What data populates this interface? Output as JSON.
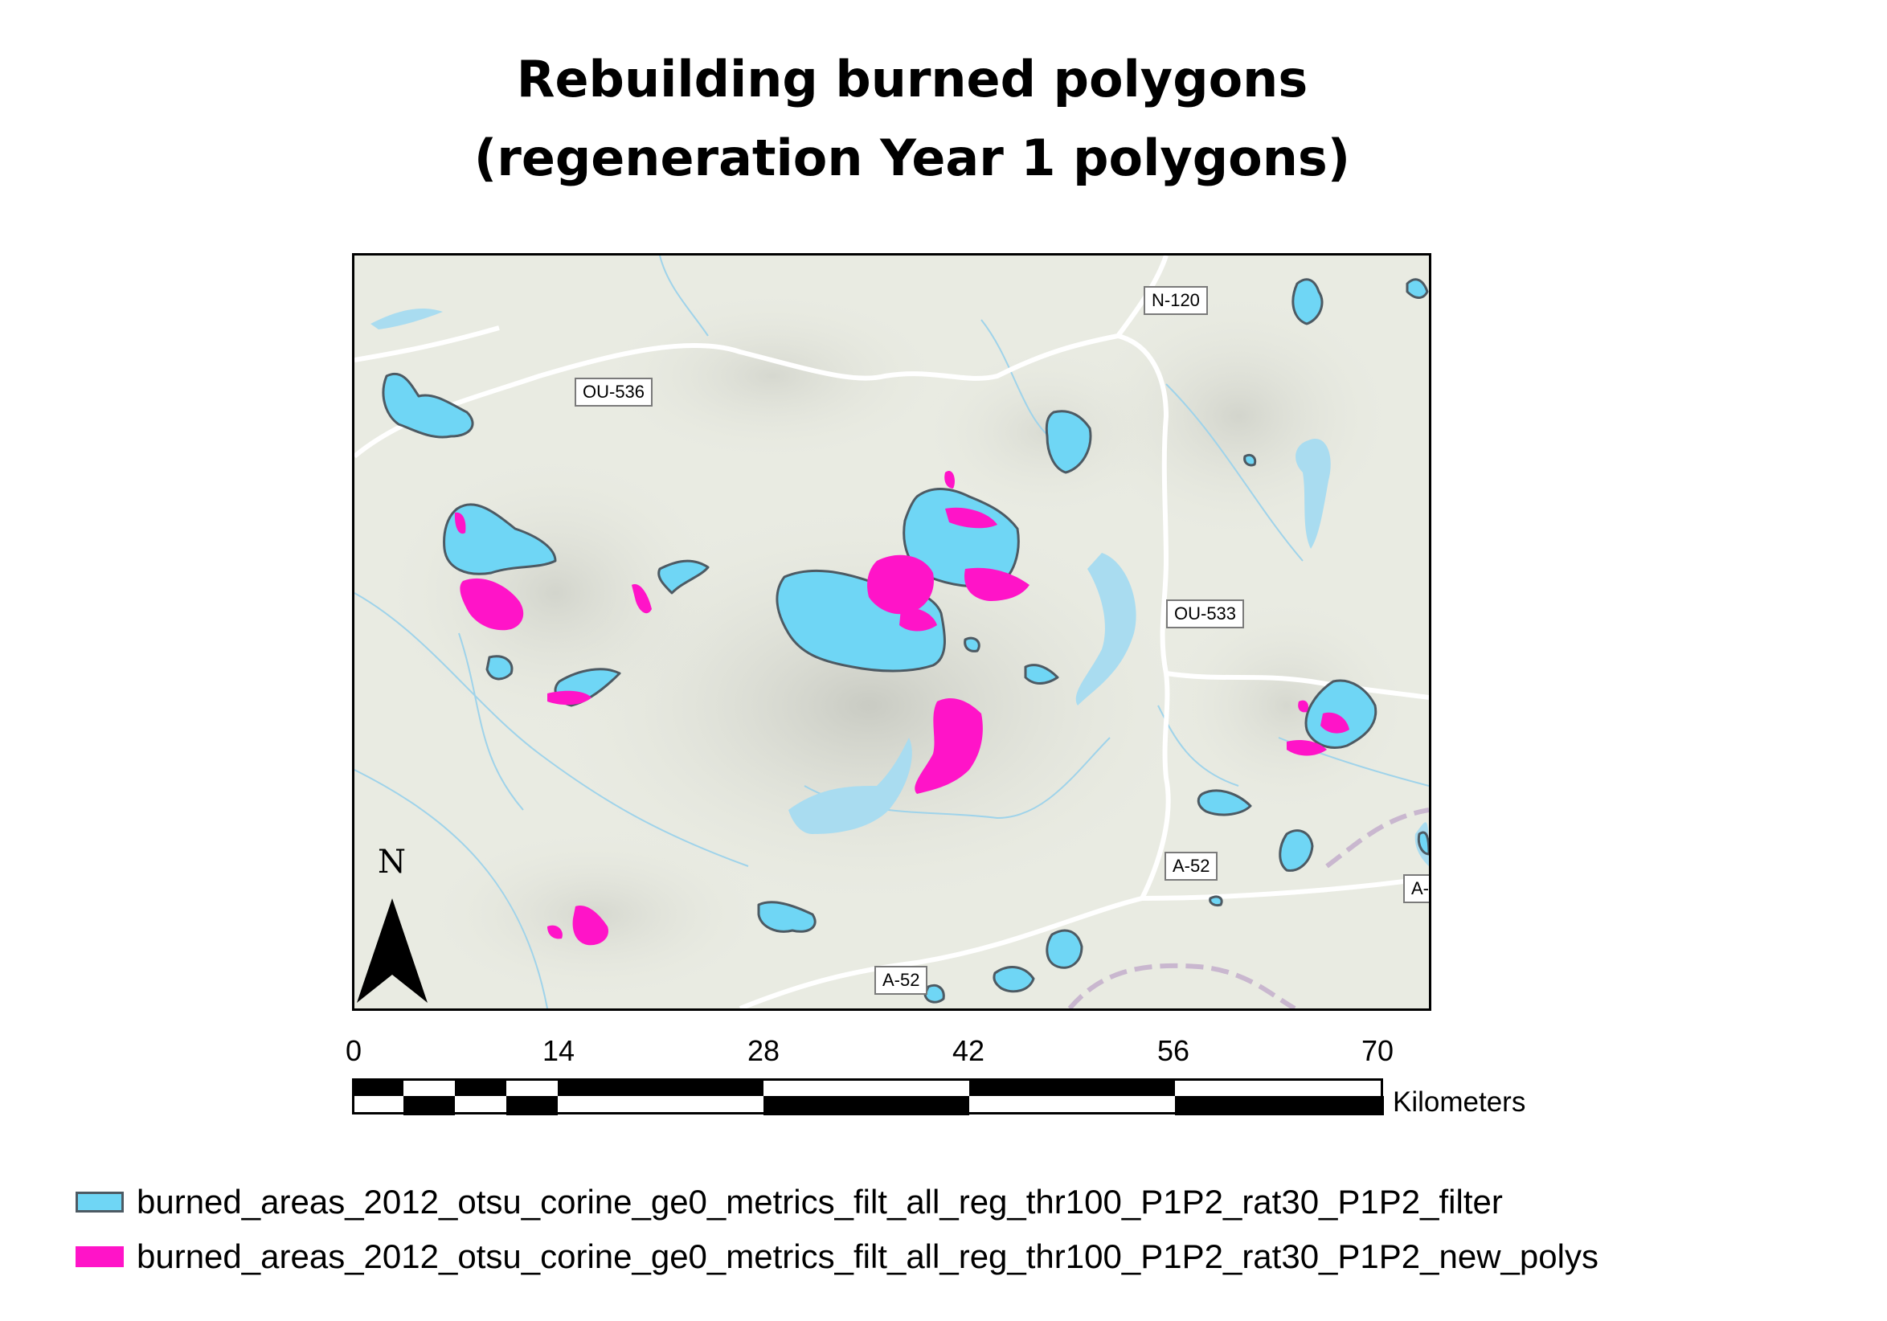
{
  "title_line1": "Rebuilding burned polygons",
  "title_line2": "(regeneration Year 1 polygons)",
  "road_labels": [
    "N-120",
    "OU-536",
    "OU-533",
    "A-52",
    "A-52",
    "A-"
  ],
  "north_arrow": {
    "letter": "N",
    "icon": "north-arrow-icon"
  },
  "scale_bar": {
    "ticks": [
      "0",
      "14",
      "28",
      "42",
      "56",
      "70"
    ],
    "unit": "Kilometers"
  },
  "legend": [
    {
      "label": "burned_areas_2012_otsu_corine_ge0_metrics_filt_all_reg_thr100_P1P2_rat30_P1P2_filter",
      "fill": "#6fd6f5",
      "stroke": "#4d5a63"
    },
    {
      "label": "burned_areas_2012_otsu_corine_ge0_metrics_filt_all_reg_thr100_P1P2_rat30_P1P2_new_polys",
      "fill": "#ff14c8",
      "stroke": "#ff14c8"
    }
  ],
  "colors": {
    "blue_polygons": "#6fd6f5",
    "pink_polygons": "#ff14c8",
    "water": "#a9dcf0",
    "terrain": "#e9ebe2"
  }
}
